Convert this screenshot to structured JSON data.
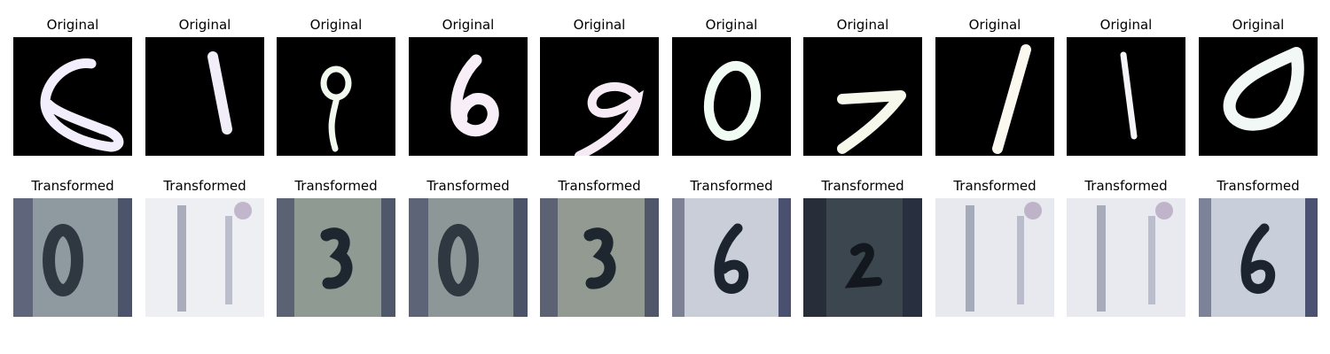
{
  "figure": {
    "rows": [
      {
        "name": "original",
        "panels": [
          {
            "title": "Original",
            "glyph": "6"
          },
          {
            "title": "Original",
            "glyph": "1"
          },
          {
            "title": "Original",
            "glyph": "9"
          },
          {
            "title": "Original",
            "glyph": "6"
          },
          {
            "title": "Original",
            "glyph": "9"
          },
          {
            "title": "Original",
            "glyph": "0"
          },
          {
            "title": "Original",
            "glyph": "7"
          },
          {
            "title": "Original",
            "glyph": "1"
          },
          {
            "title": "Original",
            "glyph": "1"
          },
          {
            "title": "Original",
            "glyph": "0"
          }
        ]
      },
      {
        "name": "transformed",
        "panels": [
          {
            "title": "Transformed",
            "glyph": "0"
          },
          {
            "title": "Transformed",
            "glyph": "1"
          },
          {
            "title": "Transformed",
            "glyph": "3"
          },
          {
            "title": "Transformed",
            "glyph": "0"
          },
          {
            "title": "Transformed",
            "glyph": "3"
          },
          {
            "title": "Transformed",
            "glyph": "6"
          },
          {
            "title": "Transformed",
            "glyph": "2"
          },
          {
            "title": "Transformed",
            "glyph": "1"
          },
          {
            "title": "Transformed",
            "glyph": "1"
          },
          {
            "title": "Transformed",
            "glyph": "6"
          }
        ]
      }
    ]
  },
  "colors": {
    "original_background": "#000000",
    "original_strokes": [
      "#f3eefb",
      "#f1eefa",
      "#f2faef",
      "#f8eef8",
      "#f6eaf4",
      "#f0fbf3",
      "#f7f8ec",
      "#fbf8f0",
      "#f5f5f9",
      "#f1f8f6"
    ],
    "transformed_backgrounds": [
      "#8f99a0",
      "#eeeff2",
      "#8e9a92",
      "#8d9798",
      "#939a92",
      "#c9ced8",
      "#3c464e",
      "#e8e9ee",
      "#e9eaef",
      "#c8cfda"
    ]
  }
}
